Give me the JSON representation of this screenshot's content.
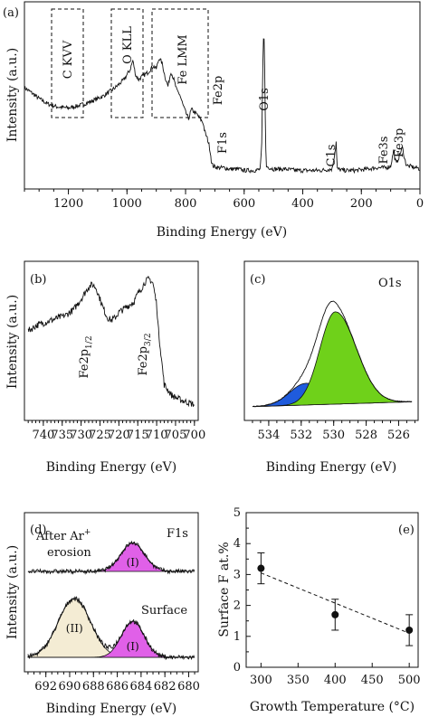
{
  "chart_data": [
    {
      "type": "line",
      "panel": "(a)",
      "xlabel": "Binding Energy (eV)",
      "ylabel": "Intensity (a.u.)",
      "xlim": [
        1350,
        0
      ],
      "x_ticks": [
        "1200",
        "1000",
        "800",
        "600",
        "400",
        "200",
        "0"
      ],
      "region_boxes": [
        "C KVV",
        "O KLL",
        "Fe LMM"
      ],
      "peak_labels": [
        "Fe2p",
        "O1s",
        "F1s",
        "C1s",
        "Fe3s",
        "Fe3p"
      ],
      "series": [
        {
          "x": [
            1350,
            1330,
            1300,
            1270,
            1240,
            1200,
            1160,
            1120,
            1080,
            1040,
            1010,
            990,
            980,
            970,
            960,
            950,
            930,
            910,
            900,
            890,
            880,
            870,
            860,
            850,
            840,
            830,
            820,
            810,
            800,
            790,
            780,
            760,
            740,
            735,
            725,
            720,
            715,
            711,
            708,
            705,
            700,
            690,
            670,
            650,
            620,
            600,
            580,
            560,
            545,
            540,
            535,
            531,
            528,
            525,
            500,
            460,
            420,
            380,
            340,
            300,
            289,
            286,
            284,
            282,
            260,
            220,
            180,
            150,
            120,
            100,
            93,
            90,
            86,
            80,
            70,
            60,
            56,
            53,
            48,
            40,
            30,
            20,
            10,
            0
          ],
          "y": [
            62,
            59,
            54,
            50,
            48,
            47,
            49,
            52,
            56,
            62,
            68,
            75,
            82,
            71,
            68,
            70,
            73,
            78,
            76,
            84,
            80,
            70,
            63,
            74,
            68,
            60,
            57,
            50,
            44,
            39,
            46,
            42,
            36,
            30,
            24,
            20,
            14,
            6,
            5,
            4,
            4,
            3,
            3,
            2,
            2,
            1,
            1,
            1,
            2,
            20,
            96,
            100,
            40,
            4,
            2,
            2,
            1,
            1,
            1,
            2,
            16,
            22,
            10,
            2,
            1,
            1,
            2,
            3,
            3,
            4,
            12,
            16,
            10,
            6,
            12,
            18,
            14,
            10,
            6,
            4,
            4,
            3,
            3,
            2
          ]
        }
      ]
    },
    {
      "type": "line",
      "panel": "(b)",
      "xlabel": "Binding Energy (eV)",
      "ylabel": "Intensity (a.u.)",
      "xlim": [
        745,
        699
      ],
      "x_ticks": [
        "740",
        "735",
        "730",
        "725",
        "720",
        "715",
        "710",
        "705",
        "700"
      ],
      "peak_labels": [
        "Fe2p1/2",
        "Fe2p3/2"
      ],
      "series": [
        {
          "x": [
            744,
            742,
            740,
            738,
            736,
            734,
            732,
            730,
            728,
            727,
            726,
            725,
            724,
            723,
            722,
            721,
            720,
            718,
            716,
            715,
            714,
            713,
            712,
            711,
            710,
            709.5,
            708,
            706,
            704,
            702,
            700
          ],
          "y": [
            60,
            64,
            66,
            68,
            70,
            72,
            76,
            84,
            93,
            95,
            92,
            84,
            76,
            70,
            68,
            70,
            74,
            78,
            82,
            88,
            92,
            97,
            99,
            96,
            80,
            60,
            20,
            12,
            9,
            7,
            5
          ]
        }
      ]
    },
    {
      "type": "area",
      "panel": "(c)",
      "title": "O1s",
      "xlabel": "Binding Energy (eV)",
      "xlim": [
        535.5,
        524.8
      ],
      "x_ticks": [
        "534",
        "532",
        "530",
        "528",
        "526"
      ],
      "components": [
        {
          "center": 531.7,
          "height": 16,
          "width": 1.0,
          "color": "#1f5bdc"
        },
        {
          "center": 529.9,
          "height": 68,
          "width": 0.95,
          "color": "#6fd11a"
        }
      ],
      "envelope_peak_y": 88
    },
    {
      "type": "area",
      "panel": "(d)",
      "title": "F1s",
      "xlabel": "Binding Energy (eV)",
      "ylabel": "Intensity (a.u.)",
      "xlim": [
        693.8,
        679.2
      ],
      "x_ticks": [
        "692",
        "690",
        "688",
        "686",
        "684",
        "682",
        "680"
      ],
      "after_ar_label": "After Ar",
      "after_ar_superscript": "+",
      "after_ar_label2": "erosion",
      "surface_label": "Surface",
      "upper_components": [
        {
          "name": "(I)",
          "center": 684.7,
          "height": 30,
          "width": 1.0,
          "color": "#e060e8"
        }
      ],
      "lower_components": [
        {
          "name": "(II)",
          "center": 689.6,
          "height": 62,
          "width": 1.35,
          "color": "#f4ecd4"
        },
        {
          "name": "(I)",
          "center": 684.7,
          "height": 38,
          "width": 0.95,
          "color": "#e060e8"
        }
      ]
    },
    {
      "type": "scatter",
      "panel": "(e)",
      "xlabel": "Growth Temperature (°C)",
      "ylabel": "Surface F at.%",
      "xlim": [
        280,
        512
      ],
      "ylim": [
        0,
        5
      ],
      "x_ticks": [
        "300",
        "350",
        "400",
        "450",
        "500"
      ],
      "y_ticks": [
        "0",
        "1",
        "2",
        "3",
        "4",
        "5"
      ],
      "x": [
        300,
        400,
        500
      ],
      "y": [
        3.2,
        1.7,
        1.2
      ],
      "yerr": [
        0.5,
        0.5,
        0.5
      ],
      "fit_line": {
        "x": [
          300,
          500
        ],
        "y": [
          3.05,
          1.1
        ]
      }
    }
  ]
}
